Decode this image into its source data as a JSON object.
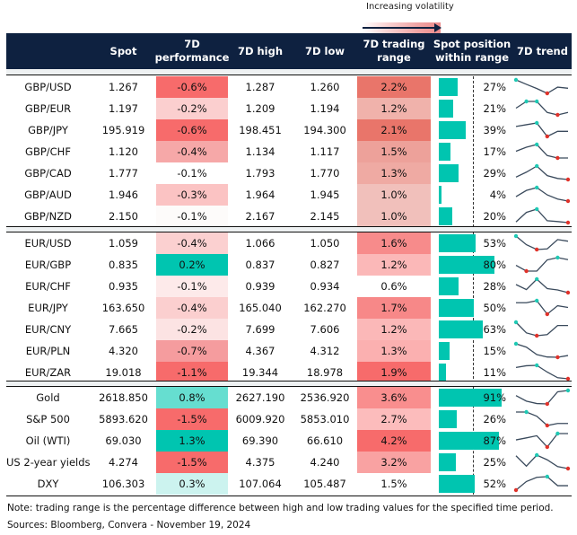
{
  "legend": {
    "label": "Increasing volatility"
  },
  "headers": [
    "",
    "Spot",
    "7D performance",
    "7D high",
    "7D low",
    "7D trading range",
    "Spot position within range",
    "7D trend"
  ],
  "colors": {
    "header": "#0e2140",
    "bar": "#00c5b0",
    "max_marker": "#1fc9b4",
    "min_marker": "#e0322a",
    "line": "#3a4a5c"
  },
  "sections": [
    {
      "rows": [
        {
          "name": "GBP/USD",
          "spot": "1.267",
          "perf": "-0.6%",
          "perf_color": "#f76b6b",
          "high": "1.287",
          "low": "1.260",
          "range": "2.2%",
          "range_color": "#e9756a",
          "position": 27,
          "position_label": "27%",
          "trend": [
            1,
            0.67,
            0.36,
            0,
            0.46,
            0.38
          ],
          "trend_max": [
            0
          ],
          "trend_min": [
            3
          ]
        },
        {
          "name": "GBP/EUR",
          "spot": "1.197",
          "perf": "-0.2%",
          "perf_color": "#fbcfcf",
          "high": "1.209",
          "low": "1.194",
          "range": "1.2%",
          "range_color": "#f0b2ab",
          "position": 21,
          "position_label": "21%",
          "trend": [
            0.5,
            1,
            1,
            0.18,
            0,
            0.18
          ],
          "trend_max": [
            1,
            2
          ],
          "trend_min": [
            4
          ]
        },
        {
          "name": "GBP/JPY",
          "spot": "195.919",
          "perf": "-0.6%",
          "perf_color": "#f76b6b",
          "high": "198.451",
          "low": "194.300",
          "range": "2.1%",
          "range_color": "#e9756a",
          "position": 39,
          "position_label": "39%",
          "trend": [
            0.74,
            0.87,
            1,
            0,
            0.38,
            0.38
          ],
          "trend_max": [
            2
          ],
          "trend_min": [
            3
          ]
        },
        {
          "name": "GBP/CHF",
          "spot": "1.120",
          "perf": "-0.4%",
          "perf_color": "#f6a8a8",
          "high": "1.134",
          "low": "1.117",
          "range": "1.5%",
          "range_color": "#eda19a",
          "position": 17,
          "position_label": "17%",
          "trend": [
            0.5,
            0.8,
            1,
            0.18,
            0,
            0
          ],
          "trend_max": [
            2
          ],
          "trend_min": [
            4
          ]
        },
        {
          "name": "GBP/CAD",
          "spot": "1.777",
          "perf": "-0.1%",
          "perf_color": "#ffffff",
          "high": "1.793",
          "low": "1.770",
          "range": "1.3%",
          "range_color": "#efaaa3",
          "position": 29,
          "position_label": "29%",
          "trend": [
            0.18,
            0.55,
            1,
            0.29,
            0.08,
            0
          ],
          "trend_max": [
            2
          ],
          "trend_min": [
            5
          ]
        },
        {
          "name": "GBP/AUD",
          "spot": "1.946",
          "perf": "-0.3%",
          "perf_color": "#fbc3c3",
          "high": "1.964",
          "low": "1.945",
          "range": "1.0%",
          "range_color": "#f1c0bb",
          "position": 4,
          "position_label": "4%",
          "trend": [
            0.33,
            0.79,
            1,
            0.46,
            0.15,
            0
          ],
          "trend_max": [
            2
          ],
          "trend_min": [
            5
          ]
        },
        {
          "name": "GBP/NZD",
          "spot": "2.150",
          "perf": "-0.1%",
          "perf_color": "#fdfbfa",
          "high": "2.167",
          "low": "2.145",
          "range": "1.0%",
          "range_color": "#f1c0bb",
          "position": 20,
          "position_label": "20%",
          "trend": [
            0.05,
            0.76,
            1,
            0.14,
            0.08,
            0
          ],
          "trend_max": [
            2
          ],
          "trend_min": [
            5
          ]
        }
      ]
    },
    {
      "rows": [
        {
          "name": "EUR/USD",
          "spot": "1.059",
          "perf": "-0.4%",
          "perf_color": "#fbd0d0",
          "high": "1.066",
          "low": "1.050",
          "range": "1.6%",
          "range_color": "#f78b8b",
          "position": 53,
          "position_label": "53%",
          "trend": [
            1,
            0.36,
            0,
            0.05,
            0.74,
            0.62
          ],
          "trend_max": [
            0
          ],
          "trend_min": [
            2
          ]
        },
        {
          "name": "EUR/GBP",
          "spot": "0.835",
          "perf": "0.2%",
          "perf_color": "#00c5b0",
          "high": "0.837",
          "low": "0.827",
          "range": "1.2%",
          "range_color": "#fbb8b8",
          "position": 80,
          "position_label": "80%",
          "trend": [
            0.43,
            0,
            0,
            0.83,
            1,
            0.85
          ],
          "trend_max": [
            4
          ],
          "trend_min": [
            1
          ]
        },
        {
          "name": "EUR/CHF",
          "spot": "0.935",
          "perf": "-0.1%",
          "perf_color": "#fdeaea",
          "high": "0.939",
          "low": "0.934",
          "range": "0.6%",
          "range_color": "#ffffff",
          "position": 28,
          "position_label": "28%",
          "trend": [
            0.6,
            0.23,
            1,
            0.3,
            0.2,
            0
          ],
          "trend_max": [
            2
          ],
          "trend_min": [
            5
          ]
        },
        {
          "name": "EUR/JPY",
          "spot": "163.650",
          "perf": "-0.4%",
          "perf_color": "#fbcfcf",
          "high": "165.040",
          "low": "162.270",
          "range": "1.7%",
          "range_color": "#f78888",
          "position": 50,
          "position_label": "50%",
          "trend": [
            0.85,
            0.85,
            1,
            0,
            0.63,
            0.5
          ],
          "trend_max": [
            2
          ],
          "trend_min": [
            3
          ]
        },
        {
          "name": "EUR/CNY",
          "spot": "7.665",
          "perf": "-0.2%",
          "perf_color": "#fce3e3",
          "high": "7.699",
          "low": "7.606",
          "range": "1.2%",
          "range_color": "#fbb8b8",
          "position": 63,
          "position_label": "63%",
          "trend": [
            1,
            0.21,
            0,
            0.08,
            0.76,
            0.76
          ],
          "trend_max": [
            0
          ],
          "trend_min": [
            2
          ]
        },
        {
          "name": "EUR/PLN",
          "spot": "4.320",
          "perf": "-0.7%",
          "perf_color": "#f59c9e",
          "high": "4.367",
          "low": "4.312",
          "range": "1.3%",
          "range_color": "#fbb0b0",
          "position": 15,
          "position_label": "15%",
          "trend": [
            1,
            0.75,
            0.2,
            0.02,
            0,
            0.13
          ],
          "trend_max": [
            0
          ],
          "trend_min": [
            4
          ]
        },
        {
          "name": "EUR/ZAR",
          "spot": "19.018",
          "perf": "-1.1%",
          "perf_color": "#f76b6b",
          "high": "19.344",
          "low": "18.978",
          "range": "1.9%",
          "range_color": "#f76b6b",
          "position": 11,
          "position_label": "11%",
          "trend": [
            0.84,
            0.97,
            1,
            0.5,
            0.08,
            0
          ],
          "trend_max": [
            2
          ],
          "trend_min": [
            5
          ]
        }
      ]
    },
    {
      "rows": [
        {
          "name": "Gold",
          "spot": "2618.850",
          "perf": "0.8%",
          "perf_color": "#66ded0",
          "high": "2627.190",
          "low": "2536.920",
          "range": "3.6%",
          "range_color": "#f98e8e",
          "position": 91,
          "position_label": "91%",
          "trend": [
            0.62,
            0.21,
            0.03,
            0,
            0.9,
            1
          ],
          "trend_max": [
            5
          ],
          "trend_min": [
            3
          ]
        },
        {
          "name": "S&P 500",
          "spot": "5893.620",
          "perf": "-1.5%",
          "perf_color": "#f76b6b",
          "high": "6009.920",
          "low": "5853.010",
          "range": "2.7%",
          "range_color": "#fcbcbc",
          "position": 26,
          "position_label": "26%",
          "trend": [
            1,
            1,
            0.69,
            0,
            0.15,
            0.15
          ],
          "trend_max": [
            1
          ],
          "trend_min": [
            3
          ]
        },
        {
          "name": "Oil (WTI)",
          "spot": "69.030",
          "perf": "1.3%",
          "perf_color": "#00c5b0",
          "high": "69.390",
          "low": "66.610",
          "range": "4.2%",
          "range_color": "#f76b6b",
          "position": 87,
          "position_label": "87%",
          "trend": [
            0.53,
            0.68,
            0.84,
            0,
            1,
            1
          ],
          "trend_max": [
            4
          ],
          "trend_min": [
            3
          ]
        },
        {
          "name": "US 2-year yields",
          "spot": "4.274",
          "perf": "-1.5%",
          "perf_color": "#f76b6b",
          "high": "4.375",
          "low": "4.240",
          "range": "3.2%",
          "range_color": "#f9a2a2",
          "position": 25,
          "position_label": "25%",
          "trend": [
            0.95,
            0.18,
            1,
            0.65,
            0.15,
            0
          ],
          "trend_max": [
            2
          ],
          "trend_min": [
            5
          ]
        },
        {
          "name": "DXY",
          "spot": "106.303",
          "perf": "0.3%",
          "perf_color": "#ccf3ef",
          "high": "107.064",
          "low": "105.487",
          "range": "1.5%",
          "range_color": "#ffffff",
          "position": 52,
          "position_label": "52%",
          "trend": [
            0,
            0.64,
            0.95,
            1,
            0.33,
            0.33
          ],
          "trend_max": [
            3
          ],
          "trend_min": [
            0
          ]
        }
      ]
    }
  ],
  "footer": {
    "note": "Note: trading range is the percentage difference between high and low trading values for the specified time period.",
    "sources": "Sources: Bloomberg, Convera - November 19, 2024"
  },
  "chart_data": {
    "type": "table",
    "columns": [
      "",
      "Spot",
      "7D performance",
      "7D high",
      "7D low",
      "7D trading range",
      "Spot position within range",
      "7D trend"
    ],
    "position_axis_midline": 50
  }
}
